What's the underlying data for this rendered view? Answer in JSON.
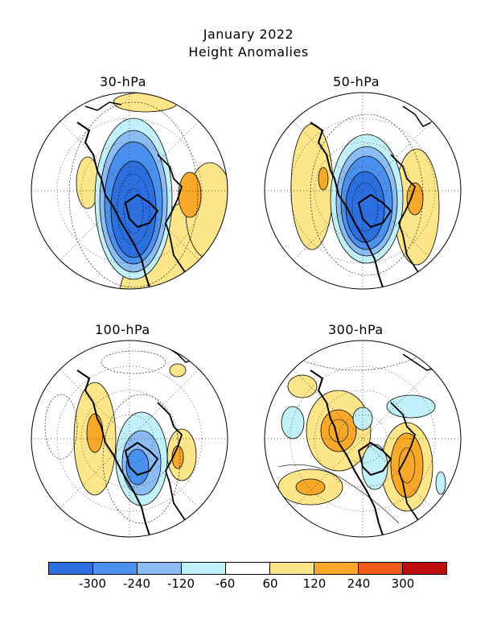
{
  "title": {
    "line1": "January 2022",
    "line2": "Height Anomalies"
  },
  "panels": [
    {
      "label": "30-hPa"
    },
    {
      "label": "50-hPa"
    },
    {
      "label": "100-hPa"
    },
    {
      "label": "300-hPa"
    }
  ],
  "colorbar": {
    "colors": [
      "#2b6fe0",
      "#4a90ee",
      "#8cbcf4",
      "#c2f0f8",
      "#ffffff",
      "#fde68a",
      "#f9a92a",
      "#f05a14",
      "#c00d0d"
    ],
    "ticks": [
      "-300",
      "-240",
      "-120",
      "-60",
      "60",
      "120",
      "240",
      "300"
    ]
  }
}
